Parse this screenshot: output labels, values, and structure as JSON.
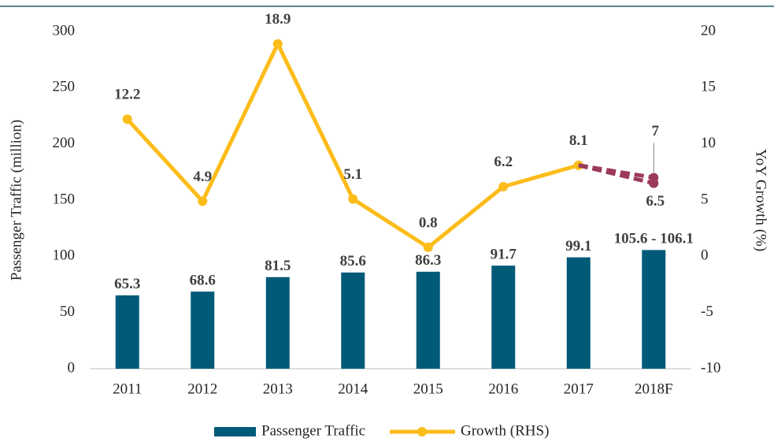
{
  "chart_data": {
    "type": "bar-line",
    "categories": [
      "2011",
      "2012",
      "2013",
      "2014",
      "2015",
      "2016",
      "2017",
      "2018F"
    ],
    "ylabel": "Passenger Traffic (million)",
    "y2label": "YoY Growth (%)",
    "ylim": [
      0,
      300
    ],
    "yticks": [
      0,
      50,
      100,
      150,
      200,
      250,
      300
    ],
    "y2lim": [
      -10,
      20
    ],
    "y2ticks": [
      -10,
      -5,
      0,
      5,
      10,
      15,
      20
    ],
    "series": [
      {
        "name": "Passenger Traffic",
        "type": "bar",
        "color": "#005a78",
        "values": [
          65.3,
          68.6,
          81.5,
          85.6,
          86.3,
          91.7,
          99.1,
          105.6
        ],
        "value_labels": [
          "65.3",
          "68.6",
          "81.5",
          "85.6",
          "86.3",
          "91.7",
          "99.1",
          "105.6 - 106.1"
        ]
      },
      {
        "name": "Growth (RHS)",
        "type": "line",
        "axis": "y2",
        "color": "#fcbc1a",
        "values": [
          12.2,
          4.9,
          18.9,
          5.1,
          0.8,
          6.2,
          8.1,
          null
        ]
      }
    ],
    "growth_forecast": {
      "category_index": 7,
      "from_index": 6,
      "color": "#9b3a5a",
      "values": [
        7.0,
        6.5
      ]
    }
  }
}
